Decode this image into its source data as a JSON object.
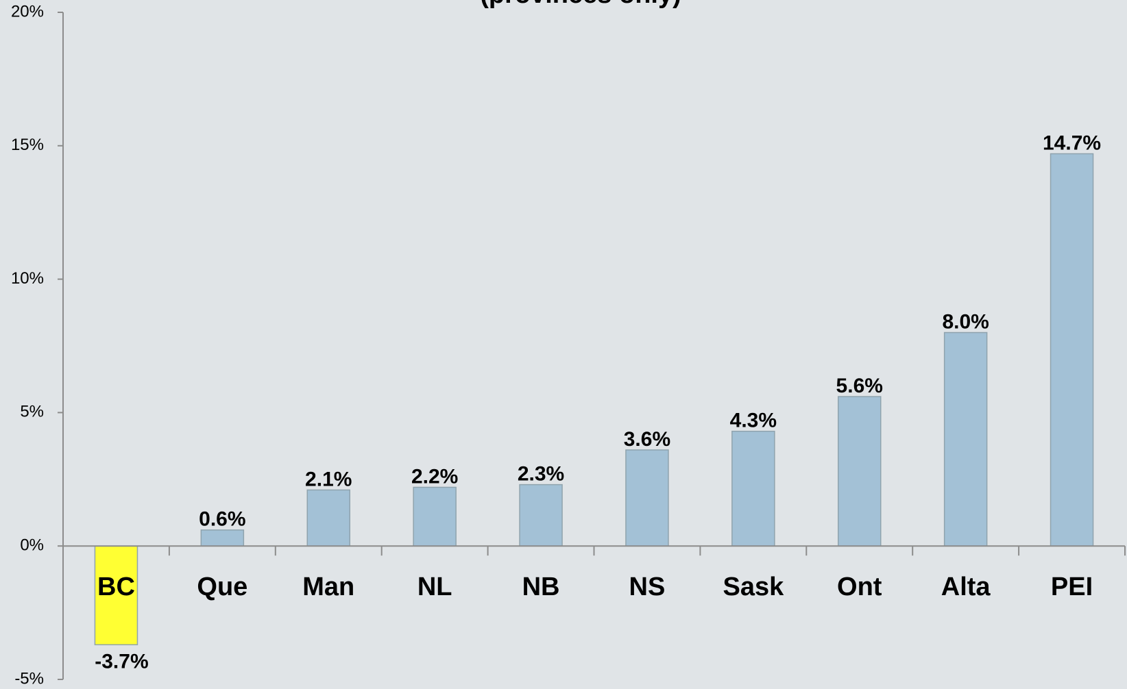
{
  "chart_data": {
    "type": "bar",
    "title": "(provinces only)",
    "categories": [
      "BC",
      "Que",
      "Man",
      "NL",
      "NB",
      "NS",
      "Sask",
      "Ont",
      "Alta",
      "PEI"
    ],
    "values": [
      -3.7,
      0.6,
      2.1,
      2.2,
      2.3,
      3.6,
      4.3,
      5.6,
      8.0,
      14.7
    ],
    "value_labels": [
      "-3.7%",
      "0.6%",
      "2.1%",
      "2.2%",
      "2.3%",
      "3.6%",
      "4.3%",
      "5.6%",
      "8.0%",
      "14.7%"
    ],
    "colors": [
      "#ffff33",
      "#a3c1d6",
      "#a3c1d6",
      "#a3c1d6",
      "#a3c1d6",
      "#a3c1d6",
      "#a3c1d6",
      "#a3c1d6",
      "#a3c1d6",
      "#a3c1d6"
    ],
    "ylim": [
      -5,
      20
    ],
    "yticks": [
      {
        "value": -5,
        "label": "-5%"
      },
      {
        "value": 0,
        "label": "0%"
      },
      {
        "value": 5,
        "label": "5%"
      },
      {
        "value": 10,
        "label": "10%"
      },
      {
        "value": 15,
        "label": "15%"
      },
      {
        "value": 20,
        "label": "20%"
      }
    ],
    "grid": false
  }
}
